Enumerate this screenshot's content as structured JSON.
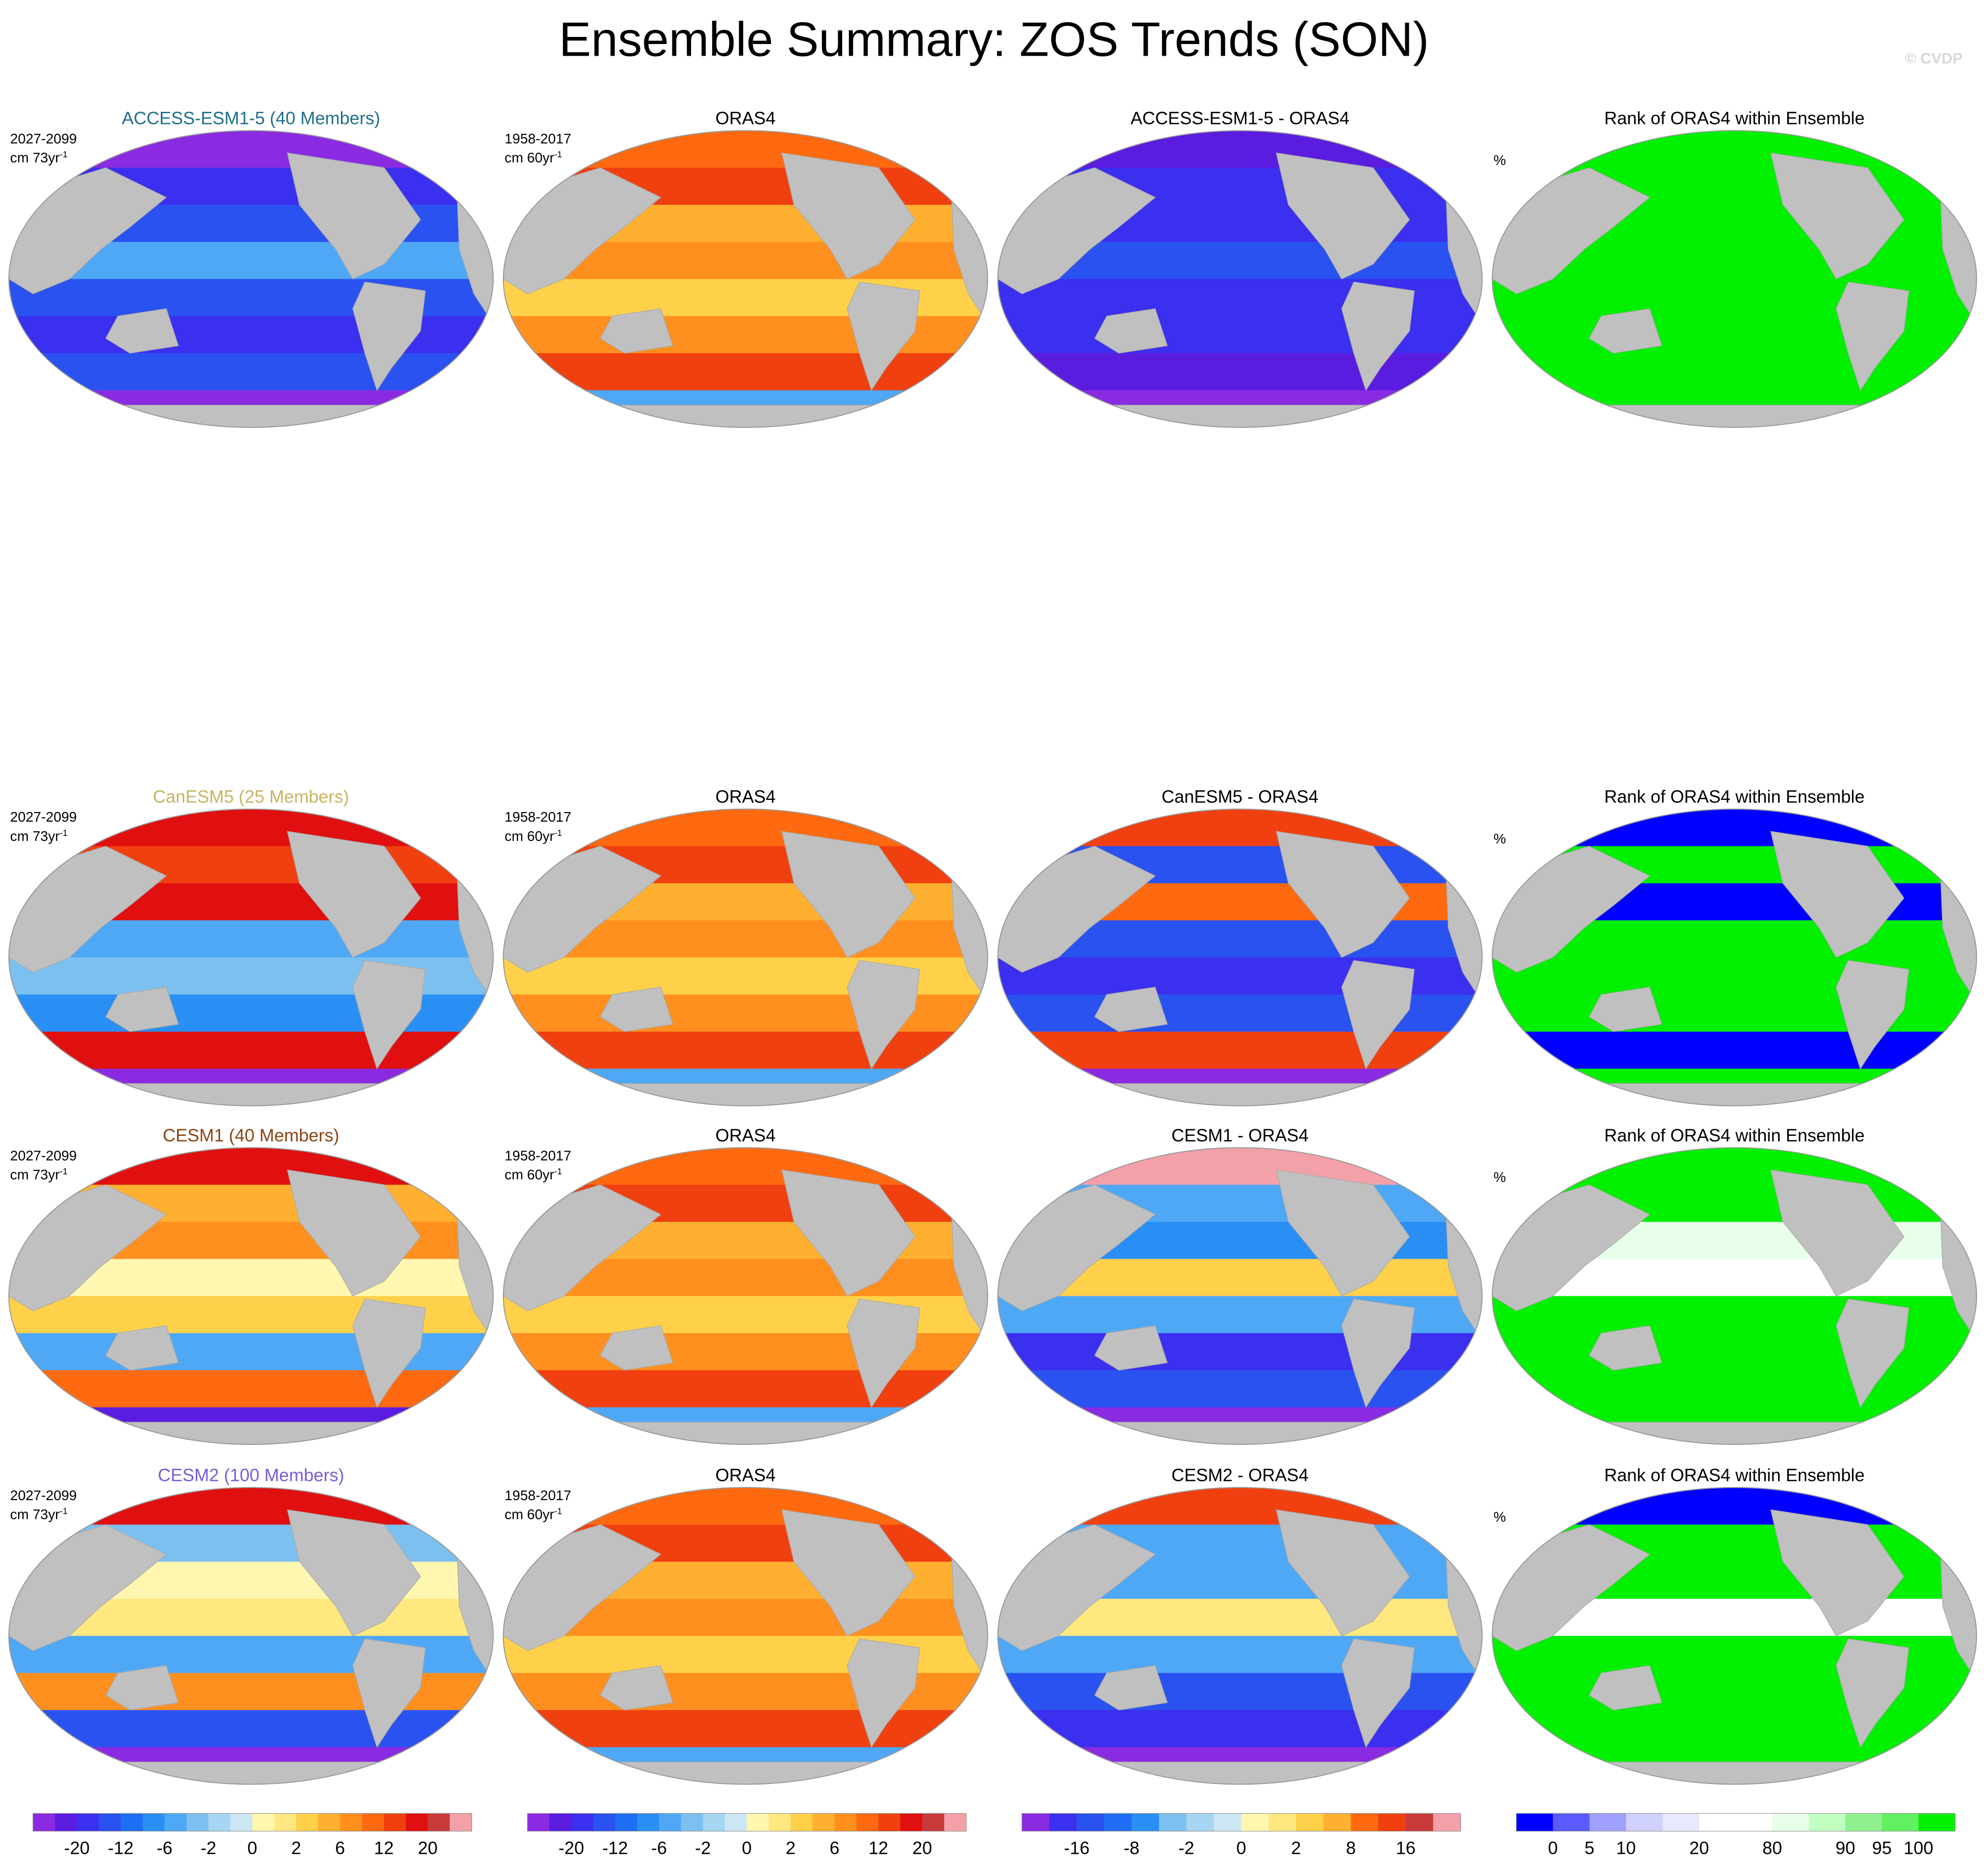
{
  "title": "Ensemble Summary: ZOS Trends (SON)",
  "watermark": "© CVDP",
  "rows": [
    {
      "panels": [
        {
          "title": "ACCESS-ESM1-5 (40 Members)",
          "title_color": "#1f6f8b",
          "period": "2027-2099",
          "units": {
            "text": "cm 73yr",
            "sup": "-1"
          }
        },
        {
          "title": "ORAS4",
          "period": "1958-2017",
          "units": {
            "text": "cm 60yr",
            "sup": "-1"
          }
        },
        {
          "title": "ACCESS-ESM1-5 - ORAS4"
        },
        {
          "title": "Rank of ORAS4 within Ensemble",
          "units": {
            "text": "%"
          }
        }
      ]
    },
    {
      "panels": [
        {
          "title": "CanESM5 (25 Members)",
          "title_color": "#c8b560",
          "period": "2027-2099",
          "units": {
            "text": "cm 73yr",
            "sup": "-1"
          }
        },
        {
          "title": "ORAS4",
          "period": "1958-2017",
          "units": {
            "text": "cm 60yr",
            "sup": "-1"
          }
        },
        {
          "title": "CanESM5 - ORAS4"
        },
        {
          "title": "Rank of ORAS4 within Ensemble",
          "units": {
            "text": "%"
          }
        }
      ]
    },
    {
      "panels": [
        {
          "title": "CESM1 (40 Members)",
          "title_color": "#8b4513",
          "period": "2027-2099",
          "units": {
            "text": "cm 73yr",
            "sup": "-1"
          }
        },
        {
          "title": "ORAS4",
          "period": "1958-2017",
          "units": {
            "text": "cm 60yr",
            "sup": "-1"
          }
        },
        {
          "title": "CESM1 - ORAS4"
        },
        {
          "title": "Rank of ORAS4 within Ensemble",
          "units": {
            "text": "%"
          }
        }
      ]
    },
    {
      "panels": [
        {
          "title": "CESM2 (100 Members)",
          "title_color": "#7b5cd6",
          "period": "2027-2099",
          "units": {
            "text": "cm 73yr",
            "sup": "-1"
          }
        },
        {
          "title": "ORAS4",
          "period": "1958-2017",
          "units": {
            "text": "cm 60yr",
            "sup": "-1"
          }
        },
        {
          "title": "CESM2 - ORAS4"
        },
        {
          "title": "Rank of ORAS4 within Ensemble",
          "units": {
            "text": "%"
          }
        }
      ]
    }
  ],
  "colorbars": [
    {
      "colors": [
        "#8a2be2",
        "#5a1de0",
        "#3b2ff0",
        "#2a52f0",
        "#1e6ff5",
        "#2a8ff5",
        "#4fa8f5",
        "#7cc0f0",
        "#a6d6f2",
        "#cce8f5",
        "#fff7b0",
        "#ffe880",
        "#ffd04a",
        "#ffb030",
        "#ff9020",
        "#ff6a10",
        "#f04010",
        "#e01010",
        "#c83a3a",
        "#f4a0a8"
      ],
      "ticks": [
        -20,
        -12,
        -6,
        -2,
        0,
        2,
        6,
        12,
        20
      ]
    },
    {
      "colors": [
        "#8a2be2",
        "#5a1de0",
        "#3b2ff0",
        "#2a52f0",
        "#1e6ff5",
        "#2a8ff5",
        "#4fa8f5",
        "#7cc0f0",
        "#a6d6f2",
        "#cce8f5",
        "#fff7b0",
        "#ffe880",
        "#ffd04a",
        "#ffb030",
        "#ff9020",
        "#ff6a10",
        "#f04010",
        "#e01010",
        "#c83a3a",
        "#f4a0a8"
      ],
      "ticks": [
        -20,
        -12,
        -6,
        -2,
        0,
        2,
        6,
        12,
        20
      ]
    },
    {
      "colors": [
        "#8a2be2",
        "#3b2ff0",
        "#2a52f0",
        "#1e6ff5",
        "#2a8ff5",
        "#7cc0f0",
        "#a6d6f2",
        "#cce8f5",
        "#fff7b0",
        "#ffe880",
        "#ffd04a",
        "#ffb030",
        "#ff6a10",
        "#f04010",
        "#c83a3a",
        "#f4a0a8"
      ],
      "ticks": [
        -16,
        -8,
        -2,
        0,
        2,
        8,
        16
      ]
    },
    {
      "colors": [
        "#0000ff",
        "#5a5aff",
        "#a0a0ff",
        "#d0d0ff",
        "#e8e8ff",
        "#ffffff",
        "#ffffff",
        "#e8ffe8",
        "#c0ffc0",
        "#90f090",
        "#60f060",
        "#00f000"
      ],
      "ticks": [
        0,
        5,
        10,
        20,
        80,
        90,
        95,
        100
      ]
    }
  ]
}
